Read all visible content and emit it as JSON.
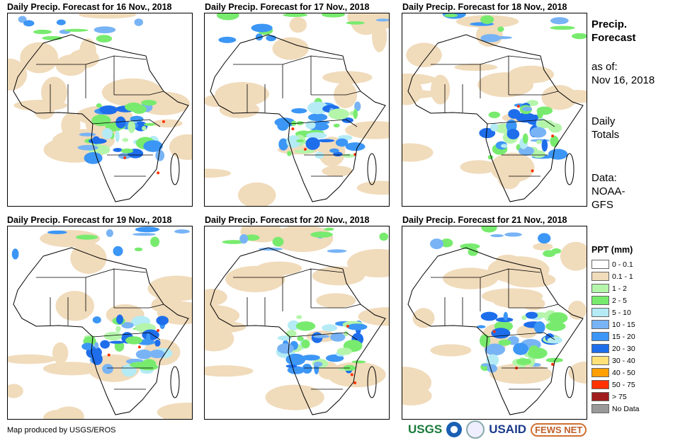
{
  "panels": [
    {
      "title": "Daily Precip. Forecast for 16 Nov., 2018"
    },
    {
      "title": "Daily Precip. Forecast for 17 Nov., 2018"
    },
    {
      "title": "Daily Precip. Forecast for 18 Nov., 2018"
    },
    {
      "title": "Daily Precip. Forecast for 19 Nov., 2018"
    },
    {
      "title": "Daily Precip. Forecast for 20 Nov., 2018"
    },
    {
      "title": "Daily Precip. Forecast for 21 Nov., 2018"
    }
  ],
  "side": {
    "heading_1": "Precip.",
    "heading_2": "Forecast",
    "asof_label": "as of:",
    "asof_date": "Nov 16, 2018",
    "totals_1": "Daily",
    "totals_2": "Totals",
    "data_1": "Data:",
    "data_2": "NOAA-",
    "data_3": "GFS"
  },
  "legend": {
    "title": "PPT (mm)",
    "items": [
      {
        "label": "0 - 0.1",
        "color": "#ffffff"
      },
      {
        "label": "0.1 - 1",
        "color": "#f0dbbb"
      },
      {
        "label": "1 - 2",
        "color": "#b4f5aa"
      },
      {
        "label": "2 - 5",
        "color": "#78eb6e"
      },
      {
        "label": "5 - 10",
        "color": "#b4ebf5"
      },
      {
        "label": "10 - 15",
        "color": "#78b4f5"
      },
      {
        "label": "15 - 20",
        "color": "#3c96f5"
      },
      {
        "label": "20 - 30",
        "color": "#1e6eeb"
      },
      {
        "label": "30 - 40",
        "color": "#ffe178"
      },
      {
        "label": "40 - 50",
        "color": "#ffa000"
      },
      {
        "label": "50 - 75",
        "color": "#ff3200"
      },
      {
        "label": "> 75",
        "color": "#a01e1e"
      },
      {
        "label": "No Data",
        "color": "#999999"
      }
    ]
  },
  "credit": "Map produced by USGS/EROS",
  "logos": {
    "usgs": "USGS",
    "usaid": "USAID",
    "fews": "FEWS NET"
  }
}
